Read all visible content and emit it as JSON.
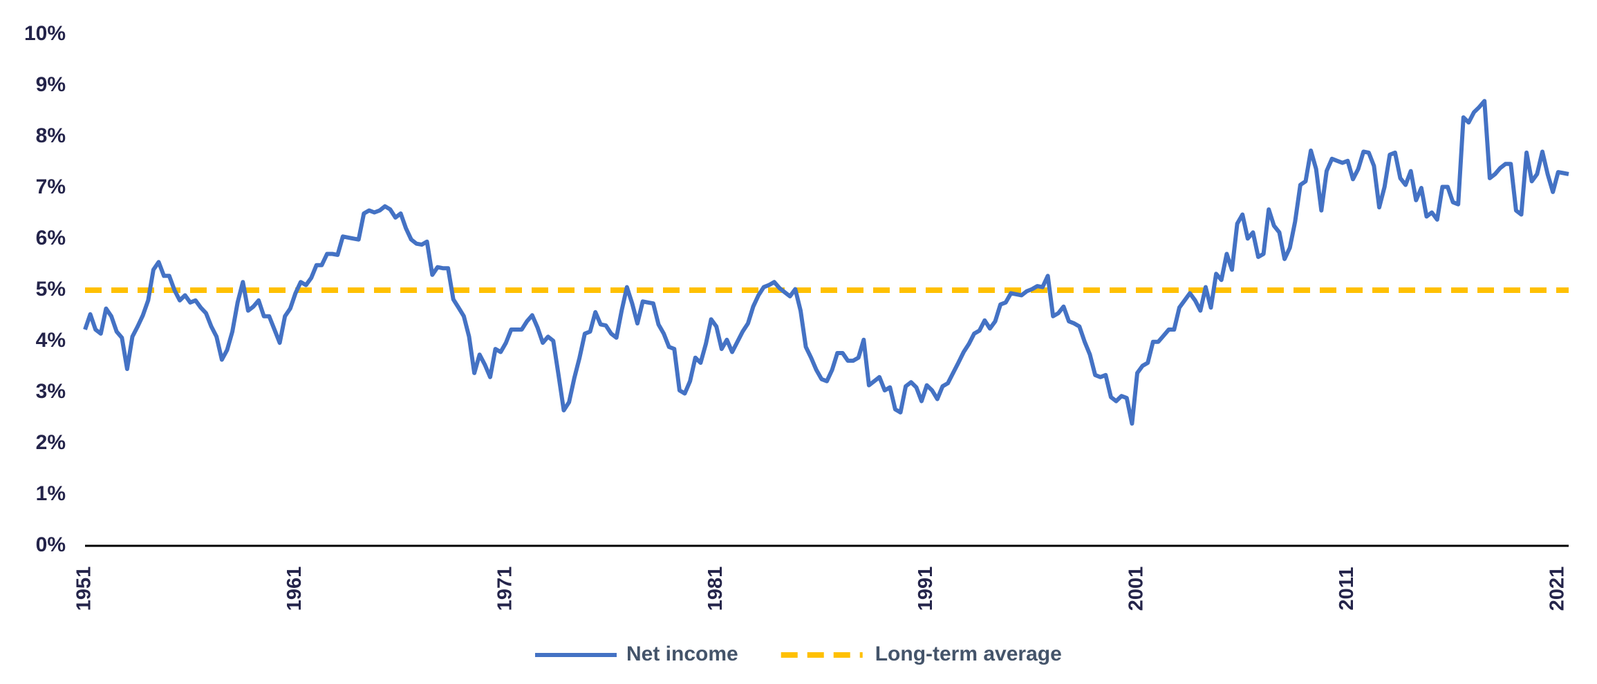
{
  "chart_data": {
    "type": "line",
    "x": [
      1951,
      1951.25,
      1951.5,
      1951.75,
      1952,
      1952.25,
      1952.5,
      1952.75,
      1953,
      1953.25,
      1953.5,
      1953.75,
      1954,
      1954.25,
      1954.5,
      1954.75,
      1955,
      1955.25,
      1955.5,
      1955.75,
      1956,
      1956.25,
      1956.5,
      1956.75,
      1957,
      1957.25,
      1957.5,
      1957.75,
      1958,
      1958.25,
      1958.5,
      1958.75,
      1959,
      1959.25,
      1959.5,
      1959.75,
      1960,
      1960.25,
      1960.5,
      1960.75,
      1961,
      1961.25,
      1961.5,
      1961.75,
      1962,
      1962.25,
      1962.5,
      1962.75,
      1963,
      1963.25,
      1963.5,
      1963.75,
      1964,
      1964.25,
      1964.5,
      1964.75,
      1965,
      1965.25,
      1965.5,
      1965.75,
      1966,
      1966.25,
      1966.5,
      1966.75,
      1967,
      1967.25,
      1967.5,
      1967.75,
      1968,
      1968.25,
      1968.5,
      1968.75,
      1969,
      1969.25,
      1969.5,
      1969.75,
      1970,
      1970.25,
      1970.5,
      1970.75,
      1971,
      1971.25,
      1971.5,
      1971.75,
      1972,
      1972.25,
      1972.5,
      1972.75,
      1973,
      1973.25,
      1973.5,
      1973.75,
      1974,
      1974.25,
      1974.5,
      1974.75,
      1975,
      1975.25,
      1975.5,
      1975.75,
      1976,
      1976.25,
      1976.5,
      1976.75,
      1977,
      1977.25,
      1977.5,
      1977.75,
      1978,
      1978.25,
      1978.5,
      1978.75,
      1979,
      1979.25,
      1979.5,
      1979.75,
      1980,
      1980.25,
      1980.5,
      1980.75,
      1981,
      1981.25,
      1981.5,
      1981.75,
      1982,
      1982.25,
      1982.5,
      1982.75,
      1983,
      1983.25,
      1983.5,
      1983.75,
      1984,
      1984.25,
      1984.5,
      1984.75,
      1985,
      1985.25,
      1985.5,
      1985.75,
      1986,
      1986.25,
      1986.5,
      1986.75,
      1987,
      1987.25,
      1987.5,
      1987.75,
      1988,
      1988.25,
      1988.5,
      1988.75,
      1989,
      1989.25,
      1989.5,
      1989.75,
      1990,
      1990.25,
      1990.5,
      1990.75,
      1991,
      1991.25,
      1991.5,
      1991.75,
      1992,
      1992.25,
      1992.5,
      1992.75,
      1993,
      1993.25,
      1993.5,
      1993.75,
      1994,
      1994.25,
      1994.5,
      1994.75,
      1995,
      1995.25,
      1995.5,
      1995.75,
      1996,
      1996.25,
      1996.5,
      1996.75,
      1997,
      1997.25,
      1997.5,
      1997.75,
      1998,
      1998.25,
      1998.5,
      1998.75,
      1999,
      1999.25,
      1999.5,
      1999.75,
      2000,
      2000.25,
      2000.5,
      2000.75,
      2001,
      2001.25,
      2001.5,
      2001.75,
      2002,
      2002.25,
      2002.5,
      2002.75,
      2003,
      2003.25,
      2003.5,
      2003.75,
      2004,
      2004.25,
      2004.5,
      2004.75,
      2005,
      2005.25,
      2005.5,
      2005.75,
      2006,
      2006.25,
      2006.5,
      2006.75,
      2007,
      2007.25,
      2007.5,
      2007.75,
      2008,
      2008.25,
      2008.5,
      2008.75,
      2009,
      2009.25,
      2009.5,
      2009.75,
      2010,
      2010.25,
      2010.5,
      2010.75,
      2011,
      2011.25,
      2011.5,
      2011.75,
      2012,
      2012.25,
      2012.5,
      2012.75,
      2013,
      2013.25,
      2013.5,
      2013.75,
      2014,
      2014.25,
      2014.5,
      2014.75,
      2015,
      2015.25,
      2015.5,
      2015.75,
      2016,
      2016.25,
      2016.5,
      2016.75,
      2017,
      2017.25,
      2017.5,
      2017.75,
      2018,
      2018.25,
      2018.5,
      2018.75,
      2019,
      2019.25,
      2019.5,
      2019.75,
      2020,
      2020.25,
      2020.5,
      2020.75,
      2021,
      2021.25,
      2021.5
    ],
    "series": [
      {
        "name": "Net income",
        "color": "#4472c4",
        "values": [
          4.23,
          4.53,
          4.23,
          4.15,
          4.64,
          4.49,
          4.19,
          4.07,
          3.46,
          4.09,
          4.29,
          4.51,
          4.8,
          5.4,
          5.55,
          5.28,
          5.28,
          5.0,
          4.8,
          4.9,
          4.76,
          4.8,
          4.66,
          4.55,
          4.29,
          4.09,
          3.64,
          3.83,
          4.19,
          4.76,
          5.16,
          4.6,
          4.68,
          4.8,
          4.49,
          4.49,
          4.23,
          3.97,
          4.49,
          4.64,
          4.94,
          5.16,
          5.1,
          5.24,
          5.49,
          5.49,
          5.71,
          5.71,
          5.69,
          6.05,
          6.03,
          6.01,
          5.99,
          6.5,
          6.56,
          6.52,
          6.56,
          6.64,
          6.58,
          6.42,
          6.5,
          6.21,
          5.99,
          5.91,
          5.89,
          5.95,
          5.3,
          5.45,
          5.43,
          5.43,
          4.82,
          4.66,
          4.49,
          4.09,
          3.38,
          3.74,
          3.54,
          3.3,
          3.85,
          3.79,
          3.97,
          4.23,
          4.23,
          4.23,
          4.39,
          4.51,
          4.27,
          3.97,
          4.09,
          4.01,
          3.34,
          2.65,
          2.81,
          3.28,
          3.68,
          4.15,
          4.19,
          4.57,
          4.33,
          4.31,
          4.15,
          4.07,
          4.6,
          5.06,
          4.74,
          4.35,
          4.78,
          4.76,
          4.74,
          4.33,
          4.15,
          3.89,
          3.85,
          3.04,
          2.98,
          3.22,
          3.68,
          3.58,
          3.95,
          4.43,
          4.29,
          3.85,
          4.03,
          3.79,
          3.99,
          4.19,
          4.35,
          4.68,
          4.9,
          5.06,
          5.1,
          5.16,
          5.04,
          4.96,
          4.88,
          5.02,
          4.6,
          3.89,
          3.68,
          3.44,
          3.26,
          3.22,
          3.44,
          3.77,
          3.77,
          3.62,
          3.62,
          3.68,
          4.03,
          3.14,
          3.22,
          3.3,
          3.04,
          3.1,
          2.67,
          2.61,
          3.12,
          3.2,
          3.1,
          2.83,
          3.14,
          3.04,
          2.87,
          3.12,
          3.18,
          3.38,
          3.58,
          3.79,
          3.95,
          4.15,
          4.21,
          4.41,
          4.25,
          4.39,
          4.72,
          4.76,
          4.94,
          4.92,
          4.9,
          4.98,
          5.02,
          5.08,
          5.06,
          5.28,
          4.49,
          4.55,
          4.68,
          4.39,
          4.35,
          4.29,
          3.99,
          3.74,
          3.34,
          3.3,
          3.34,
          2.91,
          2.83,
          2.93,
          2.89,
          2.39,
          3.38,
          3.52,
          3.58,
          3.99,
          3.99,
          4.11,
          4.23,
          4.23,
          4.66,
          4.8,
          4.94,
          4.8,
          4.6,
          5.06,
          4.66,
          5.32,
          5.2,
          5.71,
          5.4,
          6.3,
          6.48,
          6.01,
          6.13,
          5.65,
          5.71,
          6.58,
          6.26,
          6.13,
          5.61,
          5.83,
          6.34,
          7.06,
          7.13,
          7.73,
          7.37,
          6.56,
          7.33,
          7.57,
          7.53,
          7.49,
          7.53,
          7.17,
          7.37,
          7.71,
          7.69,
          7.43,
          6.62,
          7.02,
          7.65,
          7.69,
          7.19,
          7.06,
          7.33,
          6.76,
          7.0,
          6.44,
          6.52,
          6.38,
          7.02,
          7.02,
          6.72,
          6.68,
          8.38,
          8.28,
          8.48,
          8.58,
          8.7,
          7.19,
          7.27,
          7.39,
          7.47,
          7.47,
          6.56,
          6.48,
          7.69,
          7.13,
          7.27,
          7.71,
          7.27,
          6.92,
          7.31,
          7.29,
          7.27
        ]
      }
    ],
    "reference_lines": [
      {
        "name": "Long-term average",
        "value": 5,
        "color": "#ffc000",
        "dashed": true
      }
    ],
    "xlim": [
      1951,
      2021.5
    ],
    "xticks": [
      1951,
      1961,
      1971,
      1981,
      1991,
      2001,
      2011,
      2021
    ],
    "ylim": [
      0,
      10
    ],
    "yticks": [
      {
        "value": 0,
        "label": "0%"
      },
      {
        "value": 1,
        "label": "1%"
      },
      {
        "value": 2,
        "label": "2%"
      },
      {
        "value": 3,
        "label": "3%"
      },
      {
        "value": 4,
        "label": "4%"
      },
      {
        "value": 5,
        "label": "5%"
      },
      {
        "value": 6,
        "label": "6%"
      },
      {
        "value": 7,
        "label": "7%"
      },
      {
        "value": 8,
        "label": "8%"
      },
      {
        "value": 9,
        "label": "9%"
      },
      {
        "value": 10,
        "label": "10%"
      }
    ],
    "grid": false,
    "legend": "bottom"
  }
}
